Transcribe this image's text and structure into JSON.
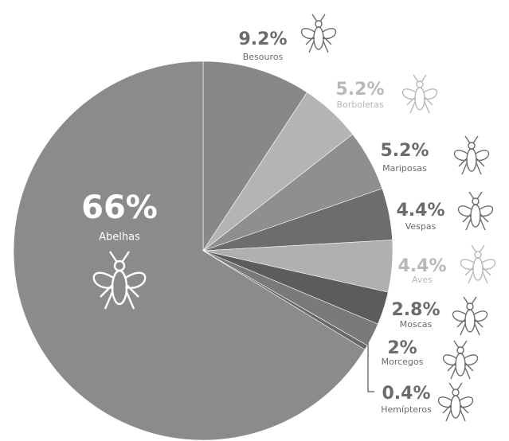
{
  "chart_data": {
    "type": "pie",
    "categories": [
      "Besouros",
      "Borboletas",
      "Mariposas",
      "Vespas",
      "Aves",
      "Moscas",
      "Morcegos",
      "Hemípteros",
      "Abelhas"
    ],
    "values": [
      9.2,
      5.2,
      5.2,
      4.4,
      4.4,
      2.8,
      2,
      0.4,
      66
    ],
    "value_labels": [
      "9.2%",
      "5.2%",
      "5.2%",
      "4.4%",
      "4.4%",
      "2.8%",
      "2%",
      "0.4%",
      "66%"
    ],
    "colors": [
      "#888888",
      "#b4b4b4",
      "#8f8f8f",
      "#6d6d6d",
      "#b0b0b0",
      "#5c5c5c",
      "#7a7a7a",
      "#686868",
      "#8b8b8b"
    ]
  }
}
